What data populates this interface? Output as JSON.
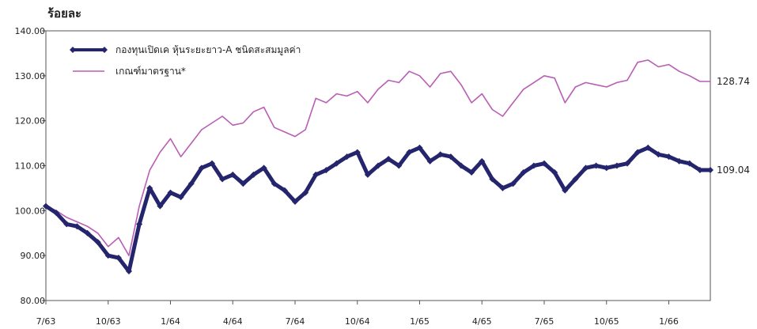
{
  "chart_data": {
    "type": "line",
    "ylabel": "ร้อยละ",
    "ylim": [
      80,
      140
    ],
    "y_ticks": [
      "80.00",
      "90.00",
      "100.00",
      "110.00",
      "120.00",
      "130.00",
      "140.00"
    ],
    "x_ticks": [
      "7/63",
      "10/63",
      "1/64",
      "4/64",
      "7/64",
      "10/64",
      "1/65",
      "4/65",
      "7/65",
      "10/65",
      "1/66"
    ],
    "grid": false,
    "legend_position": "top-left",
    "x_months": [
      0,
      0.5,
      1,
      1.5,
      2,
      2.5,
      3,
      3.5,
      4,
      4.5,
      5,
      5.5,
      6,
      6.5,
      7,
      7.5,
      8,
      8.5,
      9,
      9.5,
      10,
      10.5,
      11,
      11.5,
      12,
      12.5,
      13,
      13.5,
      14,
      14.5,
      15,
      15.5,
      16,
      16.5,
      17,
      17.5,
      18,
      18.5,
      19,
      19.5,
      20,
      20.5,
      21,
      21.5,
      22,
      22.5,
      23,
      23.5,
      24,
      24.5,
      25,
      25.5,
      26,
      26.5,
      27,
      27.5,
      28,
      28.5,
      29,
      29.5,
      30,
      30.5,
      31,
      31.5,
      32
    ],
    "series": [
      {
        "name": "กองทุนเปิดเค หุ้นระยะยาว-A ชนิดสะสมมูลค่า",
        "color": "#25256e",
        "end_label": "109.04",
        "values": [
          101,
          99.5,
          97,
          96.5,
          95,
          93,
          90,
          89.5,
          86.5,
          97,
          105,
          101,
          104,
          103,
          106,
          109.5,
          110.5,
          107,
          108,
          106,
          108,
          109.5,
          106,
          104.5,
          102,
          104,
          108,
          109,
          110.5,
          112,
          113,
          108,
          110,
          111.5,
          110,
          113,
          114,
          111,
          112.5,
          112,
          110,
          108.5,
          111,
          107,
          105,
          106,
          108.5,
          110,
          110.5,
          108.5,
          104.5,
          107,
          109.5,
          110,
          109.5,
          110,
          110.5,
          113,
          114,
          112.5,
          112,
          111,
          110.5,
          109.04,
          109.04
        ]
      },
      {
        "name": "เกณฑ์มาตรฐาน*",
        "color": "#b95db5",
        "end_label": "128.74",
        "values": [
          101,
          100,
          98.5,
          97.5,
          96.5,
          95,
          92,
          94,
          90,
          101,
          109,
          113,
          116,
          112,
          115,
          118,
          119.5,
          121,
          119,
          119.5,
          122,
          123,
          118.5,
          117.5,
          116.5,
          118,
          125,
          124,
          126,
          125.5,
          126.5,
          124,
          127,
          129,
          128.5,
          131,
          130,
          127.5,
          130.5,
          131,
          128,
          124,
          126,
          122.5,
          121,
          124,
          127,
          128.5,
          130,
          129.5,
          124,
          127.5,
          128.5,
          128,
          127.5,
          128.5,
          129,
          133,
          133.5,
          132,
          132.5,
          131,
          130,
          128.74,
          128.74
        ]
      }
    ]
  }
}
